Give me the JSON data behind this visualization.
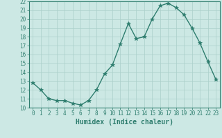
{
  "x": [
    0,
    1,
    2,
    3,
    4,
    5,
    6,
    7,
    8,
    9,
    10,
    11,
    12,
    13,
    14,
    15,
    16,
    17,
    18,
    19,
    20,
    21,
    22,
    23
  ],
  "y": [
    12.8,
    12.0,
    11.0,
    10.8,
    10.8,
    10.5,
    10.3,
    10.8,
    12.0,
    13.8,
    14.8,
    17.2,
    19.5,
    17.8,
    18.0,
    20.0,
    21.5,
    21.8,
    21.3,
    20.5,
    19.0,
    17.3,
    15.2,
    13.2
  ],
  "line_color": "#2e7d6e",
  "marker": "*",
  "markersize": 4,
  "bg_color": "#cce8e4",
  "grid_color": "#aacfca",
  "xlabel": "Humidex (Indice chaleur)",
  "ylim": [
    10,
    22
  ],
  "xlim_min": -0.5,
  "xlim_max": 23.5,
  "yticks": [
    10,
    11,
    12,
    13,
    14,
    15,
    16,
    17,
    18,
    19,
    20,
    21,
    22
  ],
  "xticks": [
    0,
    1,
    2,
    3,
    4,
    5,
    6,
    7,
    8,
    9,
    10,
    11,
    12,
    13,
    14,
    15,
    16,
    17,
    18,
    19,
    20,
    21,
    22,
    23
  ],
  "tick_fontsize": 5.5,
  "xlabel_fontsize": 7
}
